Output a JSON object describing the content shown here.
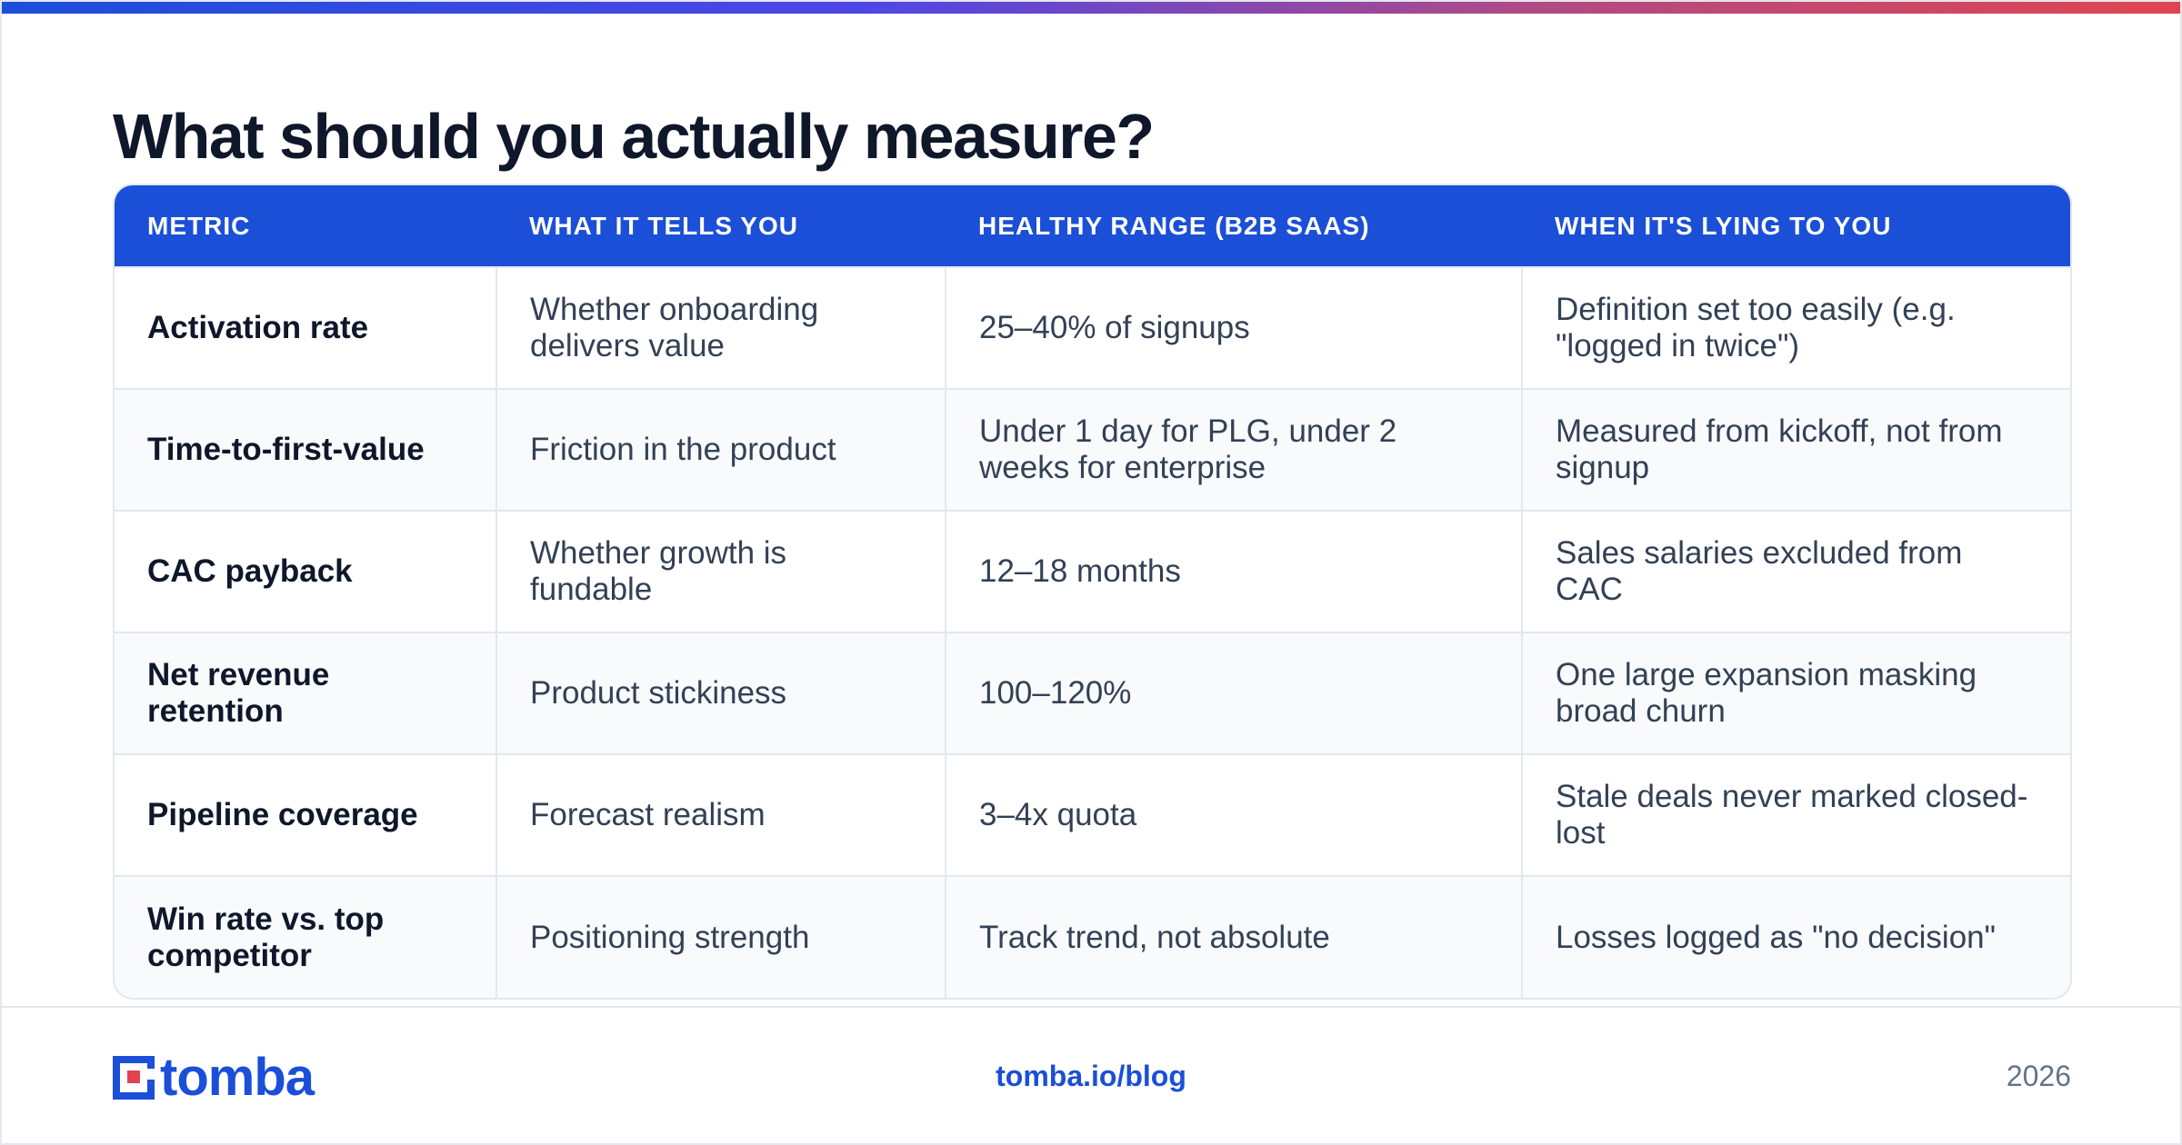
{
  "title": "What should you actually measure?",
  "table": {
    "headers": [
      "METRIC",
      "WHAT IT TELLS YOU",
      "HEALTHY RANGE (B2B SAAS)",
      "WHEN IT'S LYING TO YOU"
    ],
    "rows": [
      [
        "Activation rate",
        "Whether onboarding delivers value",
        "25–40% of signups",
        "Definition set too easily (e.g. \"logged in twice\")"
      ],
      [
        "Time-to-first-value",
        "Friction in the product",
        "Under 1 day for PLG, under 2 weeks for enterprise",
        "Measured from kickoff, not from signup"
      ],
      [
        "CAC payback",
        "Whether growth is fundable",
        "12–18 months",
        "Sales salaries excluded from CAC"
      ],
      [
        "Net revenue retention",
        "Product stickiness",
        "100–120%",
        "One large expansion masking broad churn"
      ],
      [
        "Pipeline coverage",
        "Forecast realism",
        "3–4x quota",
        "Stale deals never marked closed-lost"
      ],
      [
        "Win rate vs. top competitor",
        "Positioning strength",
        "Track trend, not absolute",
        "Losses logged as \"no decision\""
      ]
    ]
  },
  "footer": {
    "logo_text": "tomba",
    "logo_icon": "tomba-logo-icon",
    "url": "tomba.io/blog",
    "year": "2026"
  },
  "colors": {
    "accent": "#1b4fd8",
    "accent_red": "#e0454f",
    "row_alt": "#f8fafc"
  }
}
